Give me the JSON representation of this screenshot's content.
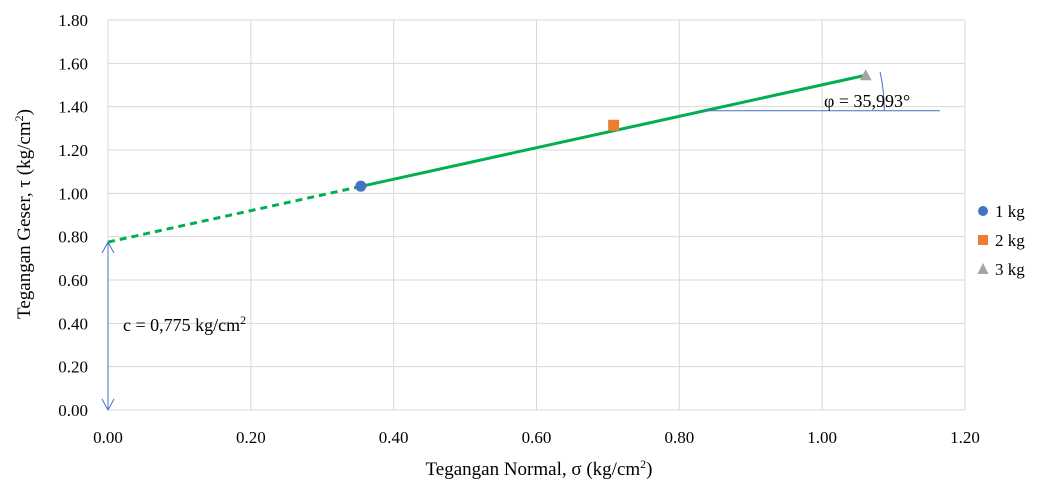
{
  "chart_data": {
    "type": "scatter",
    "xlabel_main": "Tegangan Normal, σ (kg/cm",
    "xlabel_sup": "2",
    "xlabel_end": ")",
    "ylabel_main": "Tegangan Geser, τ (kg/cm",
    "ylabel_sup": "2",
    "ylabel_end": ")",
    "xlim": [
      0,
      1.2
    ],
    "ylim": [
      0,
      1.8
    ],
    "x_ticks": [
      "0.00",
      "0.20",
      "0.40",
      "0.60",
      "0.80",
      "1.00",
      "1.20"
    ],
    "y_ticks": [
      "0.00",
      "0.20",
      "0.40",
      "0.60",
      "0.80",
      "1.00",
      "1.20",
      "1.40",
      "1.60",
      "1.80"
    ],
    "grid": true,
    "legend_position": "right",
    "series": [
      {
        "name": "1 kg",
        "marker": "circle",
        "color": "#4472C4",
        "x": 0.354,
        "y": 1.033
      },
      {
        "name": "2 kg",
        "marker": "square",
        "color": "#ED7D31",
        "x": 0.708,
        "y": 1.314
      },
      {
        "name": "3 kg",
        "marker": "triangle",
        "color": "#A5A5A5",
        "x": 1.061,
        "y": 1.545
      }
    ],
    "trendline": {
      "color": "#00B050",
      "intercept": 0.775,
      "end_x": 1.061,
      "end_y": 1.545,
      "dashed_until_x": 0.354
    },
    "annotations": {
      "phi_text": "φ = 35,993°",
      "c_text_main": "c = 0,775 kg/cm",
      "c_text_sup": "2",
      "color": "#4472C4"
    }
  }
}
